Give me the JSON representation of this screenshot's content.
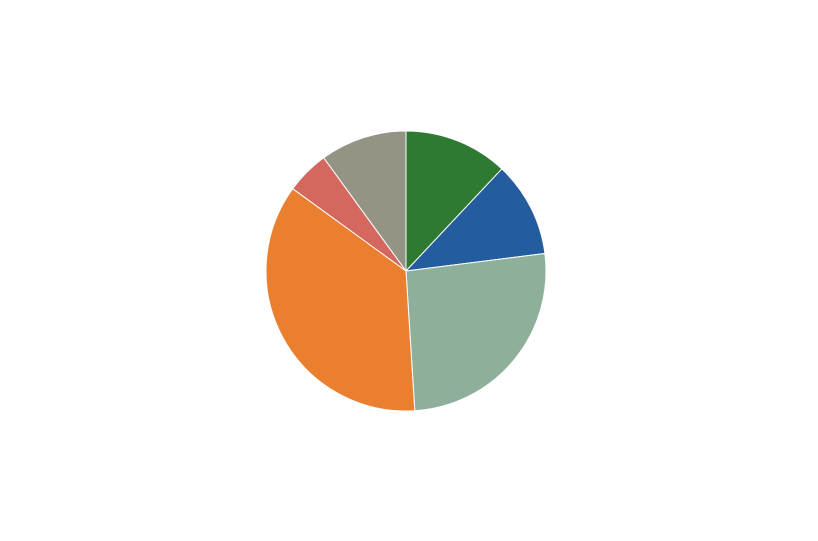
{
  "chart_data": {
    "type": "pie",
    "values": [
      12,
      11,
      26,
      36,
      5,
      10
    ],
    "colors": [
      "#2e7a31",
      "#245d9e",
      "#8eb09a",
      "#eb7f30",
      "#d4685e",
      "#949484"
    ]
  }
}
